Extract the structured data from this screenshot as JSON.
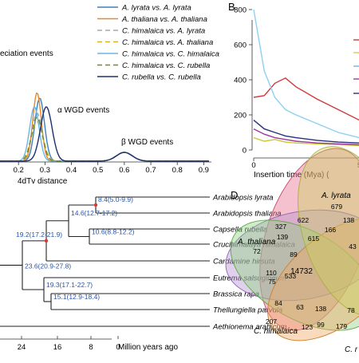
{
  "chart_data": [
    {
      "type": "line",
      "panel": "A",
      "xlabel": "4dTv distance",
      "xlim": [
        0.13,
        0.92
      ],
      "x_ticks": [
        "0.2",
        "0.3",
        "0.4",
        "0.5",
        "0.6",
        "0.7",
        "0.8",
        "0.9"
      ],
      "legend_position": "top",
      "series": [
        {
          "name": "A. lyrata vs. A. lyrata",
          "color": "#3b7fc0",
          "dash": "",
          "peak_x": 0.28
        },
        {
          "name": "A. thaliana vs. A. thaliana",
          "color": "#e8872a",
          "dash": "",
          "peak_x": 0.27
        },
        {
          "name": "C. himalaica vs. A. lyrata",
          "color": "#a8a8a8",
          "dash": "6 4",
          "peak_x": 0.27
        },
        {
          "name": "C. himalaica vs. A. thaliana",
          "color": "#d8b21e",
          "dash": "6 4",
          "peak_x": 0.27
        },
        {
          "name": "C. himalaica vs. C. himalaica",
          "color": "#6ab6e6",
          "dash": "",
          "peak_x": 0.26
        },
        {
          "name": "C. himalaica vs. C. rubella",
          "color": "#6e8e2a",
          "dash": "6 4",
          "peak_x": 0.27
        },
        {
          "name": "C. rubella vs. C. rubella",
          "color": "#1d2f6e",
          "dash": "",
          "peak_x": 0.305
        }
      ],
      "annotations": [
        "eciation events",
        "α WGD events",
        "β WGD events"
      ]
    },
    {
      "type": "line",
      "panel": "B",
      "xlabel": "Insertion time (Mya)",
      "x_ticks": [
        "0",
        "5"
      ],
      "y_ticks": [
        "0",
        "200",
        "400",
        "600",
        "800"
      ],
      "ylim": [
        0,
        850
      ],
      "series": [
        {
          "color": "#d03a3a",
          "x": [
            0,
            0.5,
            1,
            1.5,
            2,
            3,
            4,
            5,
            6,
            7,
            8
          ],
          "y": [
            300,
            310,
            380,
            410,
            360,
            290,
            230,
            170,
            130,
            110,
            100
          ]
        },
        {
          "color": "#8ed0f0",
          "x": [
            0,
            0.5,
            1,
            1.5,
            2,
            3,
            4,
            5,
            6,
            7,
            8
          ],
          "y": [
            800,
            450,
            300,
            230,
            200,
            150,
            100,
            70,
            60,
            50,
            45
          ]
        },
        {
          "color": "#2a2f7a",
          "x": [
            0,
            0.5,
            1,
            1.5,
            2,
            3,
            4,
            5,
            6,
            7,
            8
          ],
          "y": [
            170,
            120,
            100,
            80,
            70,
            55,
            45,
            40,
            35,
            30,
            25
          ]
        },
        {
          "color": "#c8c838",
          "x": [
            0,
            0.5,
            1,
            1.5,
            2,
            3,
            4,
            5,
            6,
            7,
            8
          ],
          "y": [
            70,
            50,
            60,
            45,
            40,
            35,
            30,
            25,
            22,
            20,
            18
          ]
        },
        {
          "color": "#9a3a9a",
          "x": [
            0,
            0.5,
            1,
            1.5,
            2,
            3,
            4,
            5,
            6,
            7,
            8
          ],
          "y": [
            120,
            90,
            70,
            60,
            50,
            40,
            35,
            30,
            28,
            25,
            22
          ]
        }
      ]
    },
    {
      "type": "tree",
      "panel": "C",
      "xlabel": "Million years ago",
      "x_ticks": [
        "24",
        "16",
        "8",
        "0"
      ],
      "taxa": [
        "Arabidopsis lyrata",
        "Arabidopsis thaliana",
        "Capsella rubella",
        "Crucihimalaya himalaica",
        "Cardamine hirsuta",
        "Eutrema salsugineum",
        "Brassica rapa",
        "Thellungiella parvula",
        "Aethionema arabicum"
      ],
      "node_labels": [
        "8.4(5.0-9.9)",
        "14.6(12.7-17.2)",
        "10.6(8.8-12.2)",
        "19.2(17.2-21.9)",
        "23.6(20.9-27.8)",
        "19.3(17.1-22.7)",
        "15.1(12.9-18.4)"
      ]
    },
    {
      "type": "venn",
      "panel": "D",
      "set_labels": [
        "A. lyrata",
        "A. thaliana",
        "C. himalaica",
        "C. r"
      ],
      "counts": [
        "679",
        "622",
        "138",
        "327",
        "166",
        "139",
        "615",
        "72",
        "89",
        "43",
        "14732",
        "110",
        "75",
        "533",
        "84",
        "63",
        "138",
        "78",
        "207",
        "123",
        "99",
        "179"
      ]
    }
  ],
  "labels": {
    "panel_b": "B",
    "panel_d": "D",
    "annot_speciation": "eciation events",
    "annot_alpha": "α WGD events",
    "annot_beta": "β WGD events",
    "xlabel_a": "4dTv distance",
    "xlabel_b": "Insertion time (Mya)",
    "xlabel_c": "Million years ago",
    "b_trunc": "("
  }
}
